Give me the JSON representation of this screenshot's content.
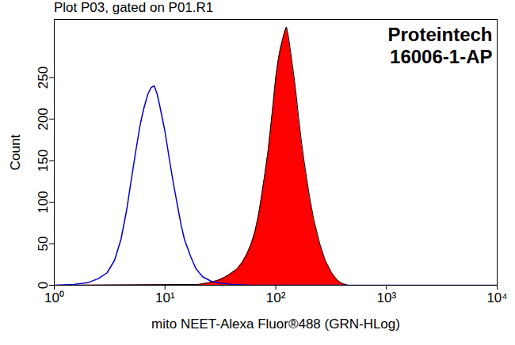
{
  "chart_data": {
    "type": "histogram",
    "title": "Plot P03, gated on P01.R1",
    "x_label": "mito NEET-Alexa Fluor®488 (GRN-HLog)",
    "y_label": "Count",
    "annotations": [
      "Proteintech",
      "16006-1-AP"
    ],
    "log": "x",
    "xlim": [
      1,
      10000
    ],
    "xticks": [
      {
        "value": 1,
        "label": "10⁰"
      },
      {
        "value": 10,
        "label": "10¹"
      },
      {
        "value": 100,
        "label": "10²"
      },
      {
        "value": 1000,
        "label": "10³"
      },
      {
        "value": 10000,
        "label": "10⁴"
      }
    ],
    "ylim": [
      0,
      320
    ],
    "yticks": [
      0,
      50,
      100,
      150,
      200,
      250
    ],
    "series": [
      {
        "type": "area",
        "color": "#ff0000",
        "x": [
          1,
          20,
          25,
          30,
          35,
          40,
          45,
          50,
          55,
          60,
          65,
          70,
          75,
          80,
          85,
          90,
          95,
          100,
          105,
          110,
          115,
          120,
          125,
          130,
          135,
          140,
          150,
          160,
          170,
          180,
          200,
          220,
          250,
          280,
          320,
          360,
          400,
          450,
          10000
        ],
        "values": [
          0,
          1,
          3,
          6,
          10,
          15,
          20,
          28,
          38,
          50,
          65,
          85,
          110,
          135,
          160,
          190,
          220,
          250,
          270,
          285,
          295,
          305,
          311,
          300,
          285,
          270,
          240,
          205,
          175,
          150,
          110,
          80,
          50,
          30,
          15,
          6,
          2,
          0,
          0
        ]
      },
      {
        "type": "line",
        "color": "#0000cc",
        "x": [
          1,
          1.5,
          2,
          2.5,
          3,
          3.5,
          4,
          4.5,
          5,
          5.5,
          6,
          6.5,
          7,
          7.5,
          8,
          8.5,
          9,
          10,
          11,
          12,
          13,
          14,
          15,
          17,
          19,
          22,
          26,
          30,
          40,
          60,
          10000
        ],
        "values": [
          0,
          1,
          3,
          8,
          15,
          30,
          55,
          90,
          130,
          165,
          195,
          215,
          230,
          238,
          240,
          230,
          215,
          185,
          150,
          120,
          95,
          72,
          55,
          35,
          20,
          10,
          5,
          3,
          1,
          0,
          0
        ]
      }
    ]
  }
}
